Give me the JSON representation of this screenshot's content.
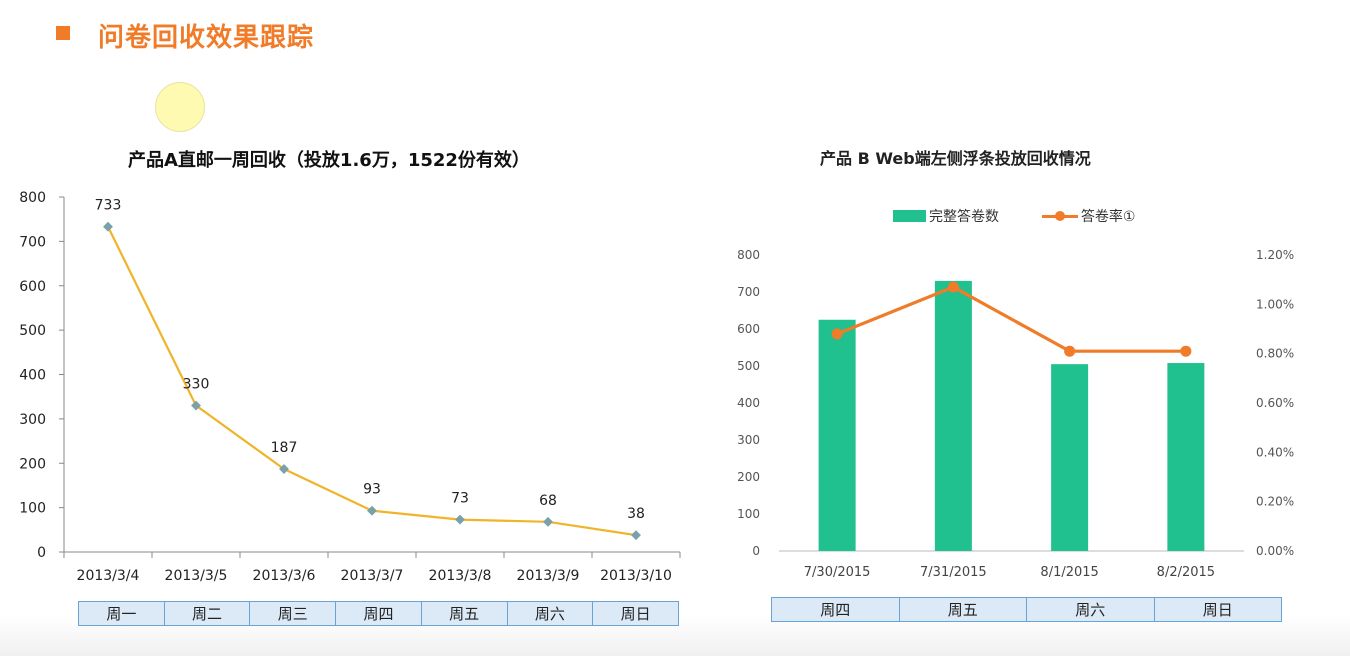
{
  "header": {
    "title": "问卷回收效果跟踪"
  },
  "chart_data": [
    {
      "type": "line",
      "title": "产品A直邮一周回收（投放1.6万，1522份有效）",
      "categories": [
        "2013/3/4",
        "2013/3/5",
        "2013/3/6",
        "2013/3/7",
        "2013/3/8",
        "2013/3/9",
        "2013/3/10"
      ],
      "weekdays": [
        "周一",
        "周二",
        "周三",
        "周四",
        "周五",
        "周六",
        "周日"
      ],
      "values": [
        733,
        330,
        187,
        93,
        73,
        68,
        38
      ],
      "ylim": [
        0,
        800
      ],
      "yticks": [
        0,
        100,
        200,
        300,
        400,
        500,
        600,
        700,
        800
      ],
      "data_labels": true,
      "grid": false,
      "colors": {
        "line": "#f0b429",
        "marker": "#7aa0a8"
      }
    },
    {
      "type": "bar",
      "title": "产品 B  Web端左侧浮条投放回收情况",
      "categories": [
        "7/30/2015",
        "7/31/2015",
        "8/1/2015",
        "8/2/2015"
      ],
      "weekdays": [
        "周四",
        "周五",
        "周六",
        "周日"
      ],
      "series": [
        {
          "name": "完整答卷数",
          "type": "bar",
          "axis": "left",
          "values": [
            625,
            730,
            505,
            508
          ]
        },
        {
          "name": "答卷率①",
          "type": "line",
          "axis": "right",
          "values": [
            0.88,
            1.07,
            0.81,
            0.81
          ]
        }
      ],
      "ylim": [
        0,
        800
      ],
      "yticks": [
        0,
        100,
        200,
        300,
        400,
        500,
        600,
        700,
        800
      ],
      "y2lim": [
        0,
        1.2
      ],
      "y2ticks": [
        "0.00%",
        "0.20%",
        "0.40%",
        "0.60%",
        "0.80%",
        "1.00%",
        "1.20%"
      ],
      "legend": "top",
      "grid": false,
      "colors": {
        "bar": "#20c08f",
        "line": "#f07c2a"
      }
    }
  ]
}
